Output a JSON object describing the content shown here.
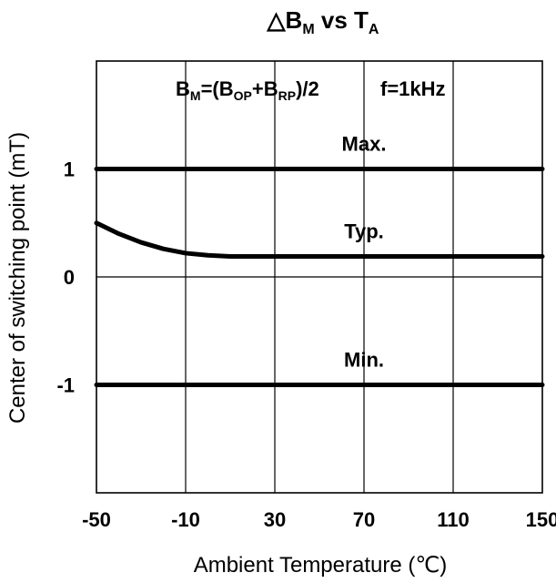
{
  "chart_data": {
    "type": "line",
    "title": {
      "prefix": "△B",
      "sub1": "M",
      "mid": " vs T",
      "sub2": "A"
    },
    "annotation": {
      "p1": "B",
      "s1": "M",
      "p2": "=(B",
      "s2": "OP",
      "p3": "+B",
      "s3": "RP",
      "p4": ")/2",
      "freq": "f=1kHz"
    },
    "xlabel": "Ambient Temperature (℃)",
    "ylabel": "Center of switching point (mT)",
    "xlim": [
      -50,
      150
    ],
    "ylim": [
      -2.0,
      2.0
    ],
    "xticks": [
      "-50",
      "-10",
      "30",
      "70",
      "110",
      "150"
    ],
    "xtick_values": [
      -50,
      -10,
      30,
      70,
      110,
      150
    ],
    "yticks": [
      "1",
      "0",
      "-1"
    ],
    "ytick_values": [
      1,
      0,
      -1
    ],
    "grid": true,
    "series": [
      {
        "name": "Max.",
        "color": "#000000",
        "x": [
          -50,
          150
        ],
        "y": [
          1.0,
          1.0
        ]
      },
      {
        "name": "Typ.",
        "color": "#000000",
        "x": [
          -50,
          -40,
          -30,
          -20,
          -10,
          0,
          10,
          20,
          30,
          70,
          110,
          150
        ],
        "y": [
          0.5,
          0.4,
          0.32,
          0.26,
          0.22,
          0.2,
          0.19,
          0.19,
          0.19,
          0.19,
          0.19,
          0.19
        ]
      },
      {
        "name": "Min.",
        "color": "#000000",
        "x": [
          -50,
          150
        ],
        "y": [
          -1.0,
          -1.0
        ]
      }
    ]
  }
}
